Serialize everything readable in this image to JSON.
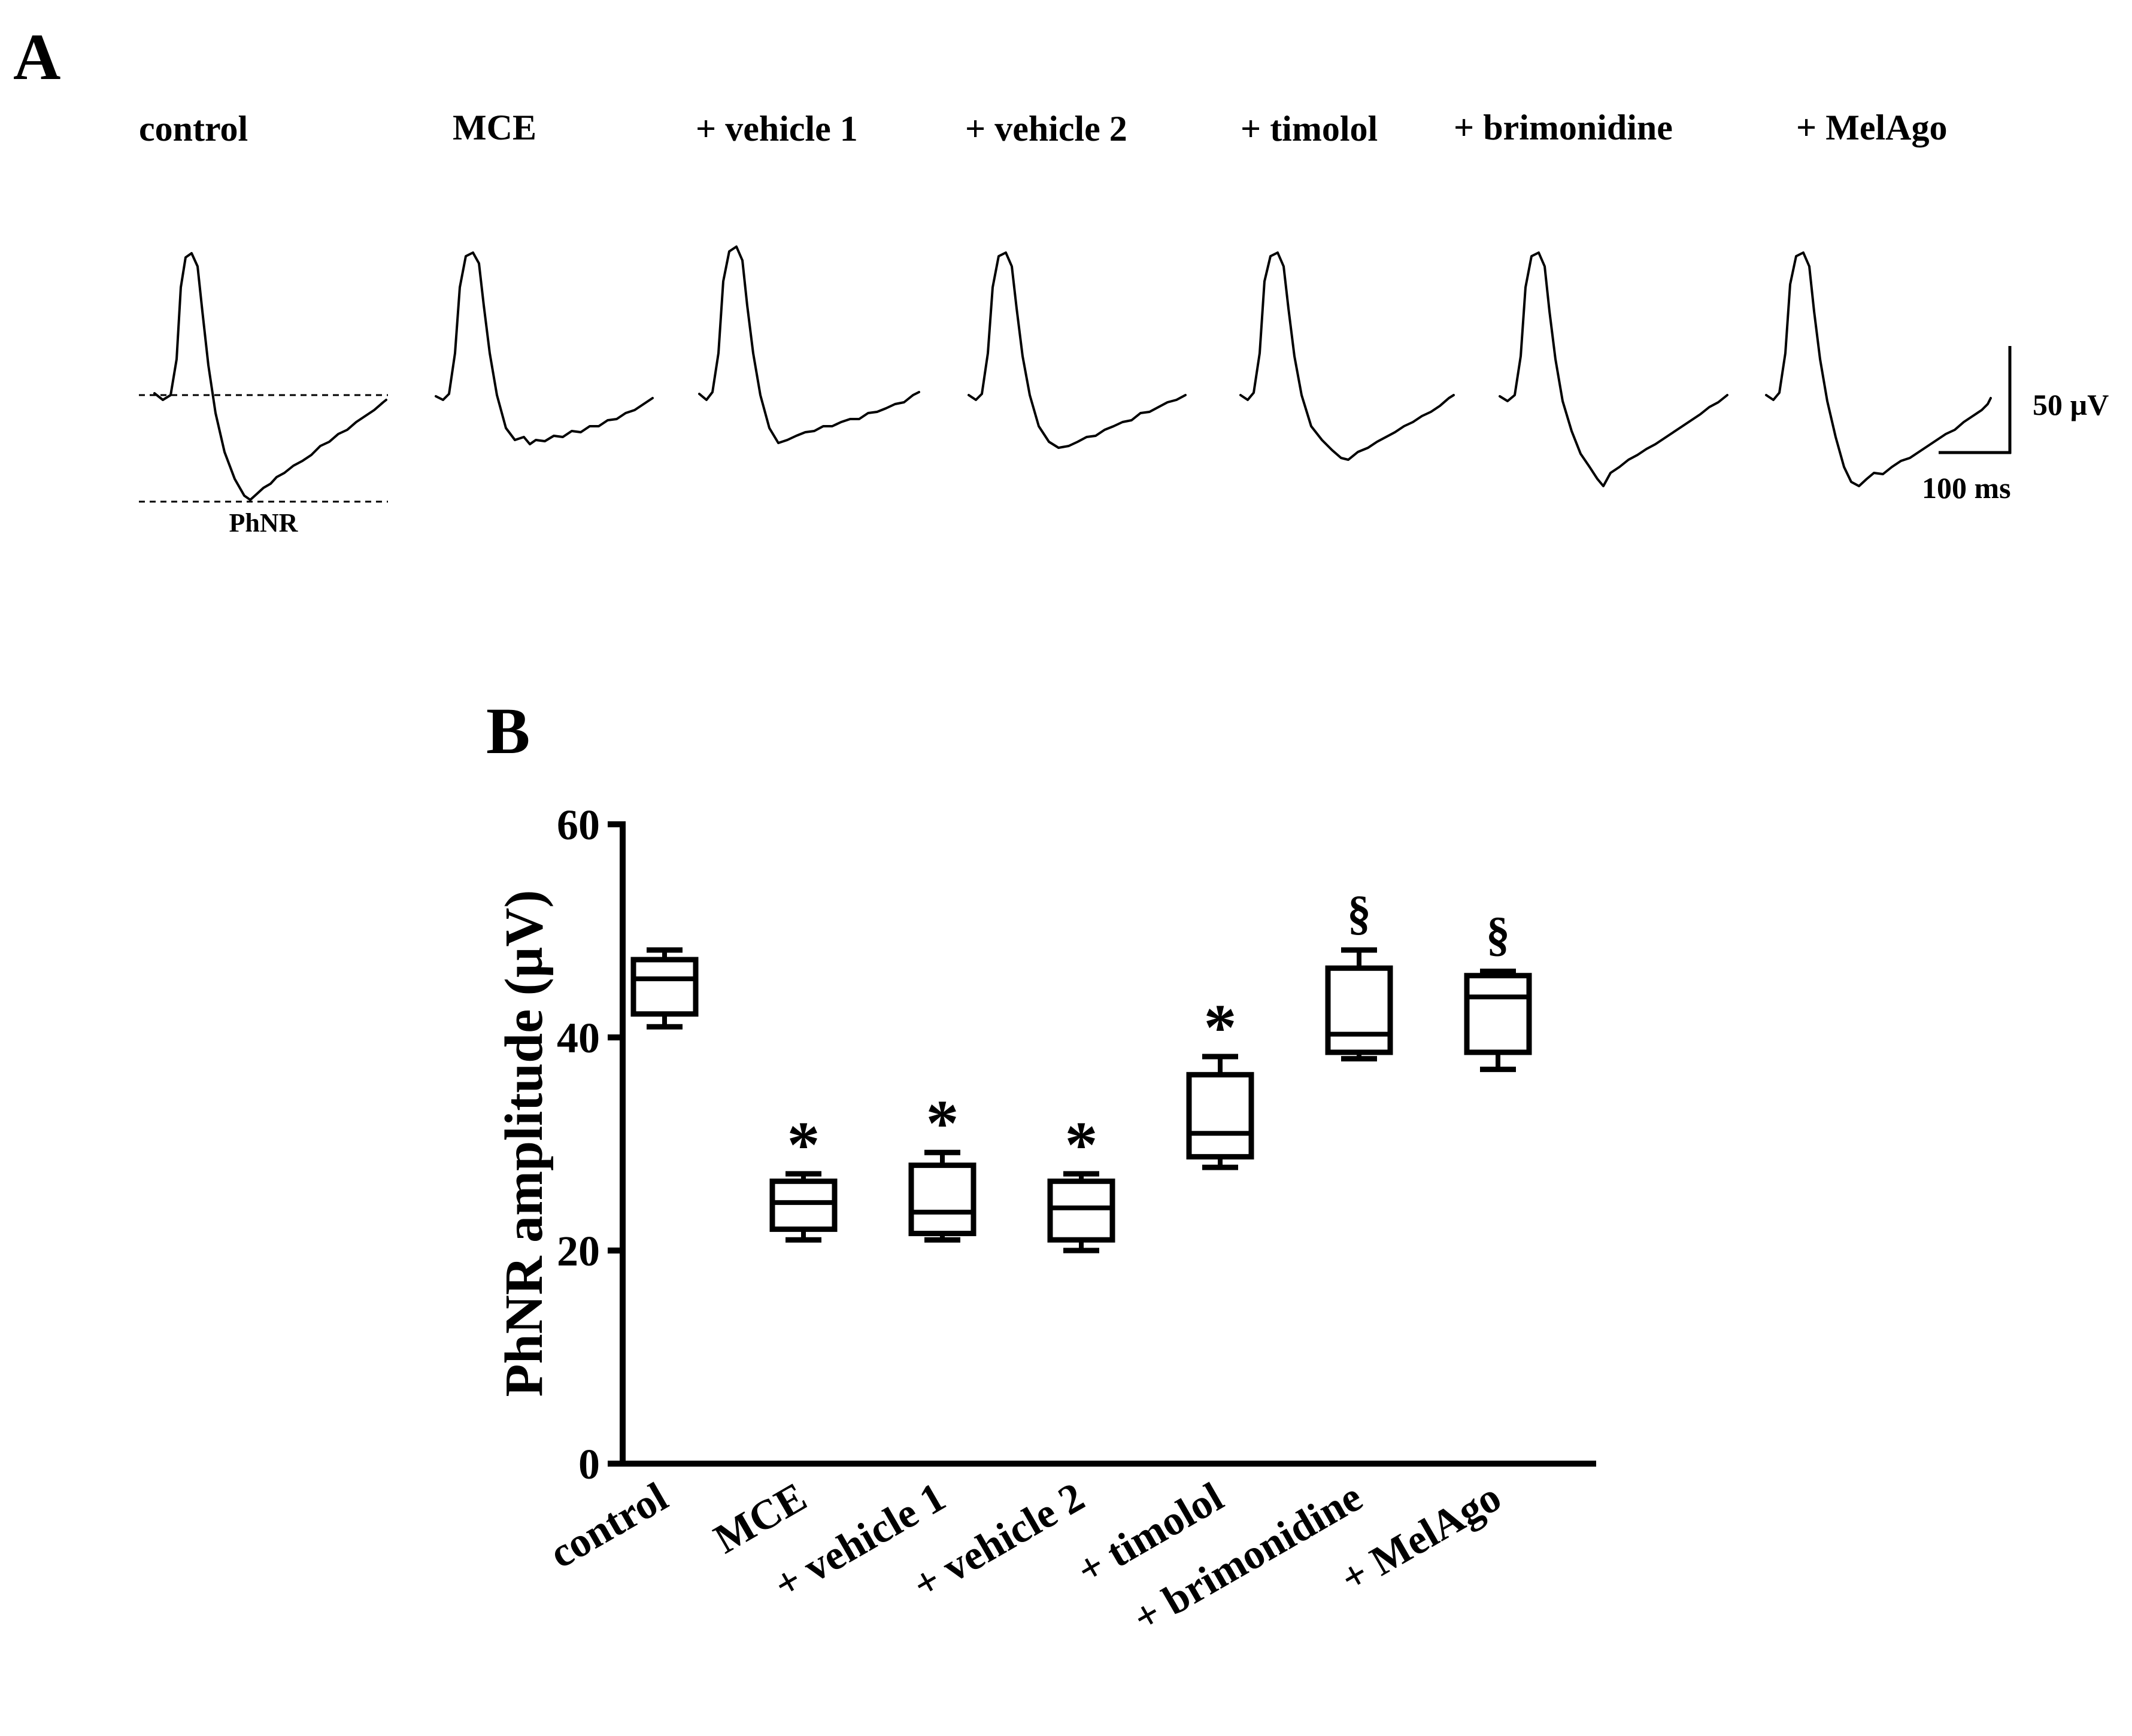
{
  "panelA": {
    "label": "A",
    "trace_labels": [
      "control",
      "MCE",
      "+ vehicle 1",
      "+ vehicle 2",
      "+ timolol",
      "+ brimonidine",
      "+ MelAgo"
    ],
    "phnr_label": "PhNR",
    "scale_bar": {
      "amplitude_label": "50 µV",
      "time_label": "100 ms"
    }
  },
  "panelB": {
    "label": "B"
  },
  "chart_data": {
    "type": "box",
    "title": "",
    "xlabel": "",
    "ylabel": "PhNR amplitude (µV)",
    "ylim": [
      0,
      60
    ],
    "yticks": [
      0,
      20,
      40,
      60
    ],
    "categories": [
      "control",
      "MCE",
      "+ vehicle 1",
      "+ vehicle 2",
      "+ timolol",
      "+ brimonidine",
      "+ MelAgo"
    ],
    "boxes": [
      {
        "min": 41.0,
        "q1": 42.2,
        "median": 45.5,
        "q3": 47.3,
        "max": 48.2,
        "annotation": ""
      },
      {
        "min": 21.0,
        "q1": 22.0,
        "median": 24.5,
        "q3": 26.5,
        "max": 27.2,
        "annotation": "*"
      },
      {
        "min": 21.0,
        "q1": 21.6,
        "median": 23.6,
        "q3": 28.0,
        "max": 29.2,
        "annotation": "*"
      },
      {
        "min": 20.0,
        "q1": 21.0,
        "median": 24.0,
        "q3": 26.5,
        "max": 27.2,
        "annotation": "*"
      },
      {
        "min": 27.8,
        "q1": 28.8,
        "median": 31.0,
        "q3": 36.5,
        "max": 38.2,
        "annotation": "*"
      },
      {
        "min": 38.0,
        "q1": 38.6,
        "median": 40.3,
        "q3": 46.5,
        "max": 48.2,
        "annotation": "§"
      },
      {
        "min": 37.0,
        "q1": 38.6,
        "median": 43.8,
        "q3": 45.8,
        "max": 46.2,
        "annotation": "§"
      }
    ]
  }
}
